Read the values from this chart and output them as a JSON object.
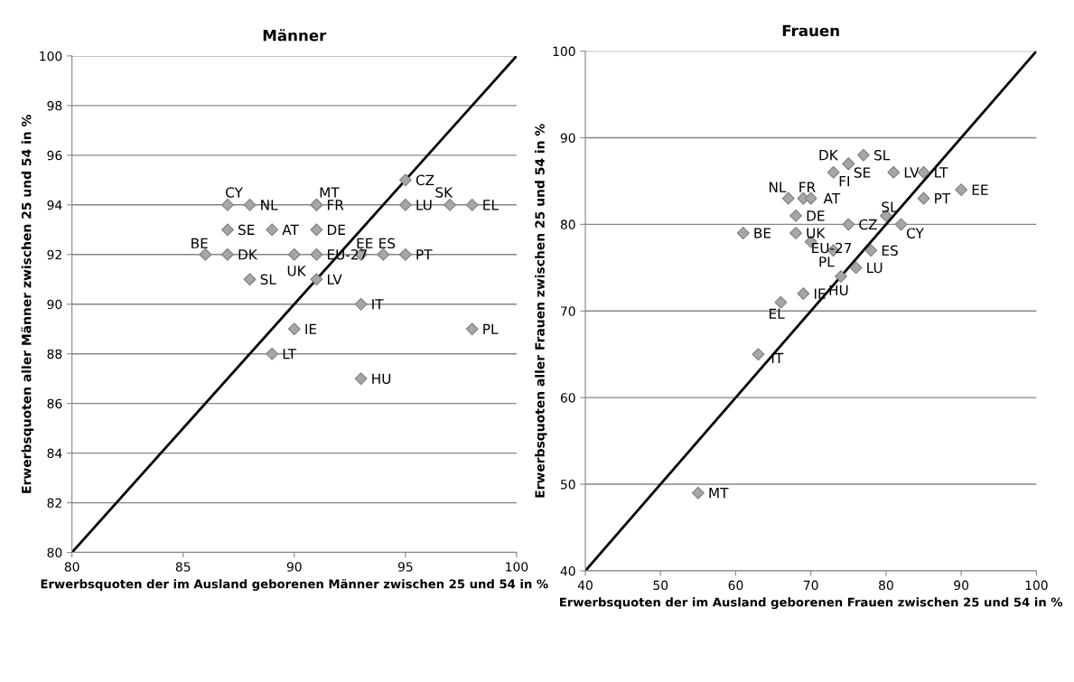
{
  "chart_data": [
    {
      "type": "scatter",
      "title": "Männer",
      "xlabel": "Erwerbsquoten der im Ausland geborenen Männer zwischen 25 und 54 in %",
      "ylabel": "Erwerbsquoten aller Männer zwischen 25 und 54 in %",
      "xlim": [
        80,
        100
      ],
      "xticks": [
        80,
        85,
        90,
        95,
        100
      ],
      "ylim": [
        80,
        100
      ],
      "yticks": [
        80,
        82,
        84,
        86,
        88,
        90,
        92,
        94,
        96,
        98,
        100
      ],
      "grid": "y",
      "legend": false,
      "series": [
        {
          "marker": "diamond",
          "color": "#a6a6a6",
          "x": [
            87,
            88,
            91,
            91,
            95,
            95,
            97,
            98,
            87,
            89,
            91,
            86,
            87,
            90,
            91,
            93,
            94,
            95,
            88,
            91,
            93,
            90,
            98,
            89,
            93
          ],
          "values": [
            94,
            94,
            94,
            94,
            95,
            94,
            94,
            94,
            93,
            93,
            93,
            92,
            92,
            92,
            92,
            92,
            92,
            92,
            91,
            91,
            90,
            89,
            89,
            88,
            87
          ]
        },
        {
          "type": "line",
          "color": "#000000",
          "x": [
            80,
            100
          ],
          "values": [
            80,
            100
          ]
        }
      ],
      "annotations": [
        {
          "text": "CY",
          "x": 87,
          "y": 94
        },
        {
          "text": "NL",
          "x": 88,
          "y": 94
        },
        {
          "text": "MT",
          "x": 91,
          "y": 94
        },
        {
          "text": "FR",
          "x": 91,
          "y": 94
        },
        {
          "text": "CZ",
          "x": 95,
          "y": 95
        },
        {
          "text": "LU",
          "x": 95,
          "y": 94
        },
        {
          "text": "SK",
          "x": 97,
          "y": 94
        },
        {
          "text": "EL",
          "x": 98,
          "y": 94
        },
        {
          "text": "SE",
          "x": 87,
          "y": 93
        },
        {
          "text": "AT",
          "x": 89,
          "y": 93
        },
        {
          "text": "DE",
          "x": 91,
          "y": 93
        },
        {
          "text": "BE",
          "x": 86,
          "y": 92
        },
        {
          "text": "DK",
          "x": 87,
          "y": 92
        },
        {
          "text": "UK",
          "x": 90,
          "y": 92
        },
        {
          "text": "EU-27",
          "x": 91,
          "y": 92
        },
        {
          "text": "EE",
          "x": 93,
          "y": 92
        },
        {
          "text": "ES",
          "x": 94,
          "y": 92
        },
        {
          "text": "PT",
          "x": 95,
          "y": 92
        },
        {
          "text": "SL",
          "x": 88,
          "y": 91
        },
        {
          "text": "LV",
          "x": 91,
          "y": 91
        },
        {
          "text": "IT",
          "x": 93,
          "y": 90
        },
        {
          "text": "IE",
          "x": 90,
          "y": 89
        },
        {
          "text": "PL",
          "x": 98,
          "y": 89
        },
        {
          "text": "LT",
          "x": 89,
          "y": 88
        },
        {
          "text": "HU",
          "x": 93,
          "y": 87
        }
      ]
    },
    {
      "type": "scatter",
      "title": "Frauen",
      "xlabel": "Erwerbsquoten der im Ausland geborenen Frauen zwischen 25 und 54 in %",
      "ylabel": "Erwerbsquoten aller Frauen zwischen 25 und 54 in %",
      "xlim": [
        40,
        100
      ],
      "xticks": [
        40,
        50,
        60,
        70,
        80,
        90,
        100
      ],
      "ylim": [
        40,
        100
      ],
      "yticks": [
        40,
        50,
        60,
        70,
        80,
        90,
        100
      ],
      "grid": "y",
      "legend": false,
      "series": [
        {
          "marker": "diamond",
          "color": "#a6a6a6",
          "x": [
            75,
            75,
            77,
            73,
            81,
            85,
            90,
            67,
            69,
            70,
            85,
            68,
            80,
            75,
            82,
            61,
            68,
            70,
            73,
            78,
            76,
            74,
            69,
            66,
            63,
            55
          ],
          "values": [
            87,
            87,
            88,
            86,
            86,
            86,
            84,
            83,
            83,
            83,
            83,
            81,
            81,
            80,
            80,
            79,
            79,
            78,
            77,
            77,
            75,
            74,
            72,
            71,
            65,
            49
          ]
        },
        {
          "type": "line",
          "color": "#000000",
          "x": [
            40,
            100
          ],
          "values": [
            40,
            100
          ]
        }
      ],
      "annotations": [
        {
          "text": "DK",
          "x": 75,
          "y": 87
        },
        {
          "text": "SE",
          "x": 75,
          "y": 87
        },
        {
          "text": "SL",
          "x": 77,
          "y": 88
        },
        {
          "text": "FI",
          "x": 73,
          "y": 86
        },
        {
          "text": "LV",
          "x": 81,
          "y": 86
        },
        {
          "text": "LT",
          "x": 85,
          "y": 86
        },
        {
          "text": "EE",
          "x": 90,
          "y": 84
        },
        {
          "text": "NL",
          "x": 67,
          "y": 83
        },
        {
          "text": "FR",
          "x": 69,
          "y": 83
        },
        {
          "text": "AT",
          "x": 70,
          "y": 83
        },
        {
          "text": "PT",
          "x": 85,
          "y": 83
        },
        {
          "text": "DE",
          "x": 68,
          "y": 81
        },
        {
          "text": "SL",
          "x": 80,
          "y": 81
        },
        {
          "text": "CZ",
          "x": 75,
          "y": 80
        },
        {
          "text": "CY",
          "x": 82,
          "y": 80
        },
        {
          "text": "BE",
          "x": 61,
          "y": 79
        },
        {
          "text": "UK",
          "x": 68,
          "y": 79
        },
        {
          "text": "EU-27",
          "x": 70,
          "y": 78
        },
        {
          "text": "PL",
          "x": 73,
          "y": 77
        },
        {
          "text": "ES",
          "x": 78,
          "y": 77
        },
        {
          "text": "LU",
          "x": 76,
          "y": 75
        },
        {
          "text": "HU",
          "x": 74,
          "y": 74
        },
        {
          "text": "IE",
          "x": 69,
          "y": 72
        },
        {
          "text": "EL",
          "x": 66,
          "y": 71
        },
        {
          "text": "IT",
          "x": 63,
          "y": 65
        },
        {
          "text": "MT",
          "x": 55,
          "y": 49
        }
      ]
    }
  ]
}
